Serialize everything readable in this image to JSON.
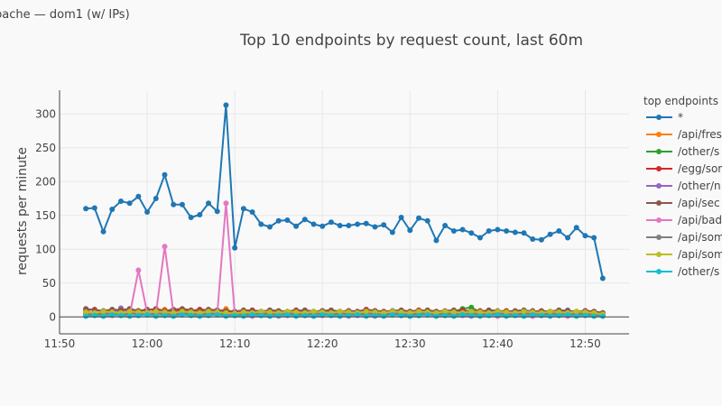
{
  "page": {
    "label": "pache — dom1 (w/ IPs)"
  },
  "chart_data": {
    "type": "line",
    "title": "Top 10 endpoints by request count, last 60m",
    "xlabel": "",
    "ylabel": "requests per minute",
    "x_ticks": [
      "11:50",
      "12:00",
      "12:10",
      "12:20",
      "12:30",
      "12:40",
      "12:50"
    ],
    "y_ticks": [
      0,
      50,
      100,
      150,
      200,
      250,
      300
    ],
    "xlim": [
      "11:50",
      "12:55"
    ],
    "ylim": [
      -25,
      335
    ],
    "grid": true,
    "legend": {
      "title": "top endpoints",
      "position": "right"
    },
    "x": [
      "11:53",
      "11:54",
      "11:55",
      "11:56",
      "11:57",
      "11:58",
      "11:59",
      "12:00",
      "12:01",
      "12:02",
      "12:03",
      "12:04",
      "12:05",
      "12:06",
      "12:07",
      "12:08",
      "12:09",
      "12:10",
      "12:11",
      "12:12",
      "12:13",
      "12:14",
      "12:15",
      "12:16",
      "12:17",
      "12:18",
      "12:19",
      "12:20",
      "12:21",
      "12:22",
      "12:23",
      "12:24",
      "12:25",
      "12:26",
      "12:27",
      "12:28",
      "12:29",
      "12:30",
      "12:31",
      "12:32",
      "12:33",
      "12:34",
      "12:35",
      "12:36",
      "12:37",
      "12:38",
      "12:39",
      "12:40",
      "12:41",
      "12:42",
      "12:43",
      "12:44",
      "12:45",
      "12:46",
      "12:47",
      "12:48",
      "12:49",
      "12:50",
      "12:51",
      "12:52"
    ],
    "series": [
      {
        "name": "*",
        "color": "#1f77b4",
        "values": [
          160,
          161,
          126,
          159,
          171,
          168,
          178,
          155,
          175,
          210,
          166,
          166,
          147,
          151,
          168,
          156,
          313,
          102,
          160,
          155,
          137,
          133,
          142,
          143,
          134,
          144,
          137,
          134,
          140,
          135,
          135,
          137,
          138,
          133,
          136,
          125,
          147,
          128,
          146,
          142,
          113,
          135,
          127,
          129,
          124,
          117,
          127,
          129,
          127,
          125,
          124,
          115,
          114,
          122,
          127,
          117,
          132,
          120,
          117,
          57
        ]
      },
      {
        "name": "/api/fres",
        "color": "#ff7f0e",
        "values": [
          8,
          6,
          5,
          7,
          8,
          9,
          7,
          6,
          8,
          11,
          7,
          6,
          8,
          9,
          8,
          7,
          12,
          5,
          6,
          7,
          4,
          6,
          5,
          7,
          8,
          6,
          5,
          7,
          6,
          8,
          7,
          5,
          6,
          8,
          7,
          6,
          7,
          5,
          8,
          6,
          7,
          5,
          6,
          7,
          5,
          8,
          6,
          7,
          5,
          6,
          8,
          7,
          6,
          5,
          7,
          6,
          8,
          5,
          7,
          4
        ]
      },
      {
        "name": "/other/s",
        "color": "#2ca02c",
        "values": [
          6,
          5,
          7,
          4,
          6,
          8,
          5,
          7,
          6,
          5,
          7,
          6,
          4,
          5,
          7,
          6,
          5,
          4,
          6,
          7,
          5,
          6,
          4,
          5,
          8,
          7,
          6,
          5,
          7,
          6,
          5,
          4,
          6,
          7,
          5,
          6,
          8,
          7,
          6,
          5,
          7,
          6,
          8,
          12,
          14,
          7,
          6,
          5,
          4,
          6,
          5,
          7,
          6,
          5,
          4,
          6,
          7,
          5,
          6,
          3
        ]
      },
      {
        "name": "/egg/sor",
        "color": "#d62728",
        "values": [
          10,
          11,
          8,
          9,
          10,
          11,
          9,
          10,
          12,
          9,
          8,
          10,
          9,
          11,
          10,
          9,
          8,
          7,
          9,
          10,
          8,
          9,
          7,
          8,
          10,
          9,
          8,
          9,
          7,
          8,
          9,
          8,
          11,
          9,
          8,
          7,
          9,
          8,
          10,
          9,
          8,
          7,
          9,
          10,
          8,
          9,
          7,
          8,
          9,
          7,
          8,
          9,
          7,
          8,
          9,
          8,
          7,
          9,
          8,
          6
        ]
      },
      {
        "name": "/other/n",
        "color": "#9467bd",
        "values": [
          5,
          4,
          6,
          5,
          13,
          7,
          5,
          4,
          6,
          5,
          4,
          5,
          6,
          4,
          5,
          7,
          6,
          4,
          5,
          3,
          5,
          4,
          6,
          5,
          4,
          5,
          6,
          5,
          4,
          5,
          6,
          4,
          5,
          6,
          5,
          4,
          5,
          6,
          4,
          5,
          6,
          4,
          5,
          6,
          5,
          4,
          5,
          6,
          4,
          5,
          6,
          5,
          4,
          5,
          6,
          10,
          5,
          4,
          5,
          3
        ]
      },
      {
        "name": "/api/sec",
        "color": "#8c564b",
        "values": [
          12,
          10,
          9,
          11,
          10,
          12,
          9,
          11,
          10,
          9,
          11,
          12,
          10,
          9,
          11,
          10,
          9,
          8,
          10,
          9,
          8,
          10,
          9,
          8,
          9,
          10,
          8,
          9,
          10,
          8,
          9,
          8,
          10,
          9,
          8,
          9,
          10,
          8,
          9,
          10,
          8,
          9,
          10,
          8,
          9,
          8,
          10,
          9,
          8,
          9,
          10,
          8,
          9,
          8,
          10,
          9,
          8,
          9,
          8,
          6
        ]
      },
      {
        "name": "/api/bad",
        "color": "#e377c2",
        "values": [
          2,
          3,
          1,
          2,
          4,
          3,
          69,
          6,
          5,
          104,
          5,
          3,
          4,
          2,
          3,
          4,
          168,
          3,
          2,
          1,
          2,
          3,
          1,
          2,
          3,
          2,
          1,
          2,
          3,
          2,
          1,
          2,
          3,
          1,
          2,
          3,
          2,
          1,
          2,
          3,
          1,
          2,
          3,
          2,
          1,
          2,
          3,
          1,
          2,
          3,
          2,
          1,
          2,
          3,
          2,
          1,
          2,
          3,
          2,
          1
        ]
      },
      {
        "name": "/api/som",
        "color": "#7f7f7f",
        "values": [
          4,
          3,
          5,
          4,
          3,
          5,
          4,
          3,
          5,
          4,
          3,
          5,
          4,
          3,
          5,
          4,
          3,
          2,
          4,
          3,
          5,
          4,
          3,
          5,
          4,
          3,
          5,
          4,
          3,
          5,
          4,
          3,
          5,
          4,
          3,
          5,
          4,
          3,
          5,
          4,
          3,
          5,
          4,
          3,
          5,
          4,
          3,
          5,
          4,
          3,
          5,
          4,
          3,
          5,
          4,
          3,
          5,
          4,
          3,
          2
        ]
      },
      {
        "name": "/api/som",
        "color": "#bcbd22",
        "values": [
          7,
          6,
          8,
          7,
          6,
          8,
          7,
          6,
          8,
          7,
          6,
          8,
          7,
          6,
          8,
          7,
          6,
          5,
          7,
          6,
          8,
          7,
          6,
          8,
          7,
          6,
          8,
          7,
          6,
          8,
          7,
          6,
          8,
          7,
          6,
          8,
          7,
          6,
          8,
          7,
          6,
          8,
          7,
          6,
          8,
          7,
          6,
          8,
          7,
          6,
          8,
          7,
          6,
          8,
          7,
          6,
          8,
          7,
          6,
          4
        ]
      },
      {
        "name": "/other/s",
        "color": "#17becf",
        "values": [
          1,
          2,
          1,
          3,
          2,
          1,
          2,
          3,
          1,
          2,
          1,
          3,
          2,
          1,
          2,
          3,
          1,
          2,
          1,
          3,
          2,
          1,
          2,
          3,
          1,
          2,
          1,
          3,
          2,
          1,
          2,
          3,
          1,
          2,
          1,
          3,
          2,
          1,
          2,
          3,
          1,
          2,
          1,
          3,
          2,
          1,
          2,
          3,
          1,
          2,
          1,
          3,
          2,
          1,
          2,
          3,
          1,
          2,
          1,
          1
        ]
      }
    ]
  }
}
